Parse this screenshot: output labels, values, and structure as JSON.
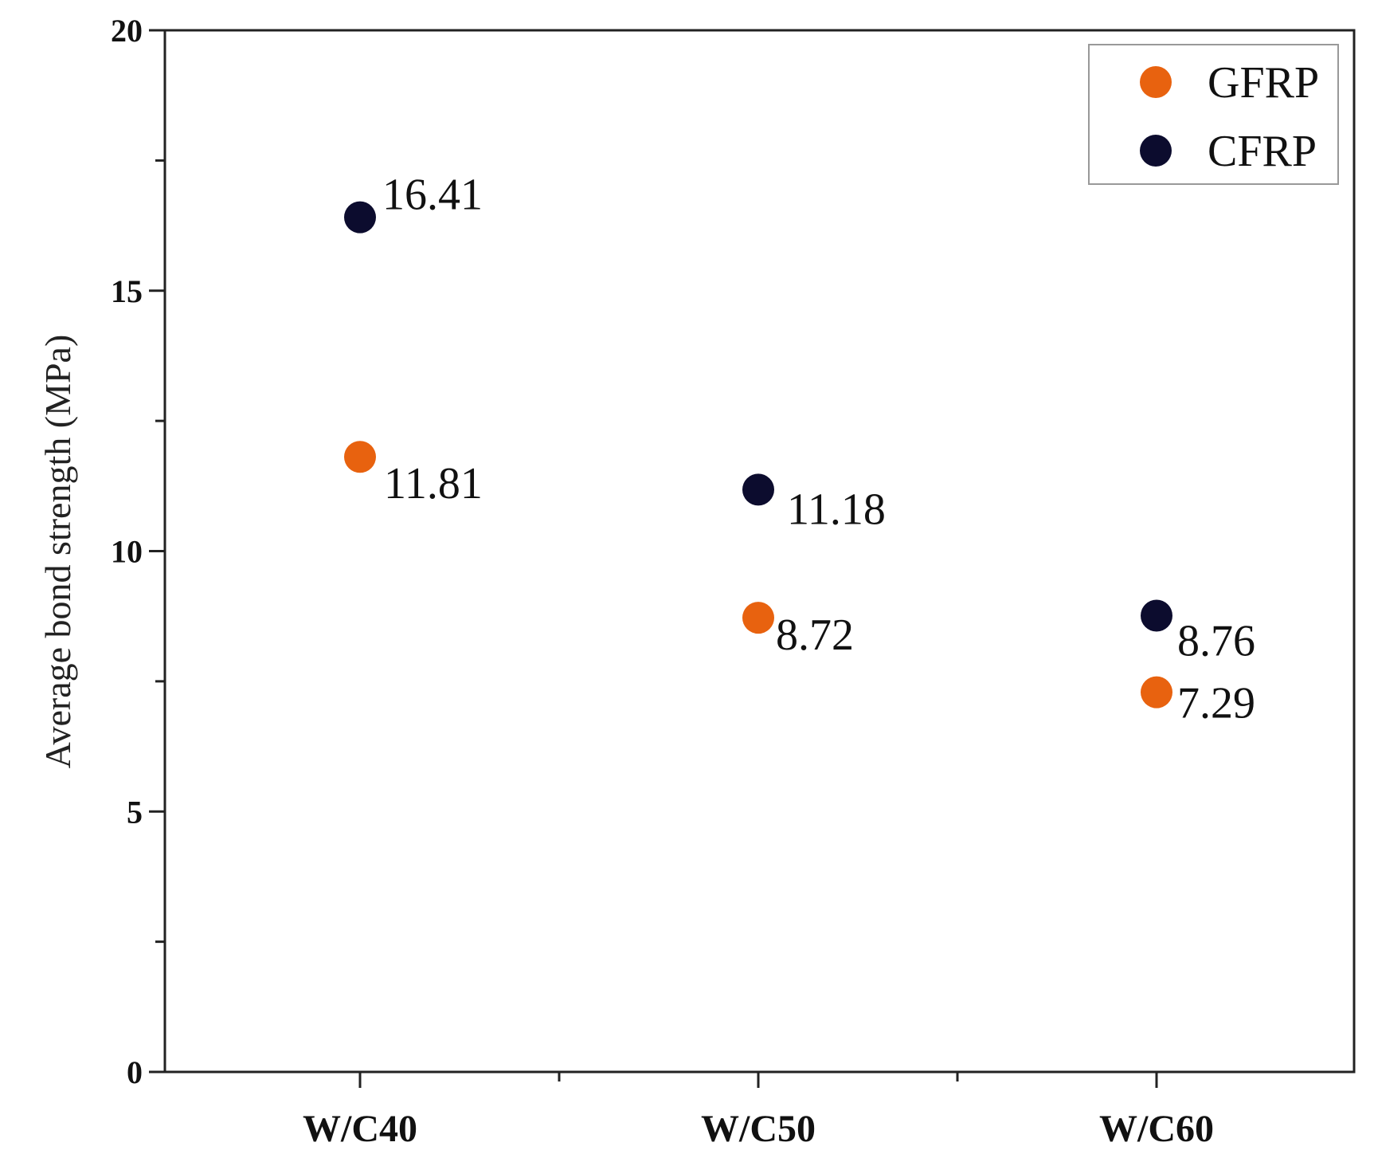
{
  "chart_data": {
    "type": "scatter",
    "title": "",
    "xlabel": "",
    "ylabel": "Average bond strength (MPa)",
    "categories": [
      "W/C40",
      "W/C50",
      "W/C60"
    ],
    "ylim": [
      0,
      20
    ],
    "yticks": [
      0,
      5,
      10,
      15,
      20
    ],
    "grid": false,
    "legend_position": "top-right",
    "series": [
      {
        "name": "GFRP",
        "color": "#e8620f",
        "values": [
          11.81,
          8.72,
          7.29
        ],
        "labels": [
          "11.81",
          "8.72",
          "7.29"
        ]
      },
      {
        "name": "CFRP",
        "color": "#0c0c2e",
        "values": [
          16.41,
          11.18,
          8.76
        ],
        "labels": [
          "16.41",
          "11.18",
          "8.76"
        ]
      }
    ]
  }
}
